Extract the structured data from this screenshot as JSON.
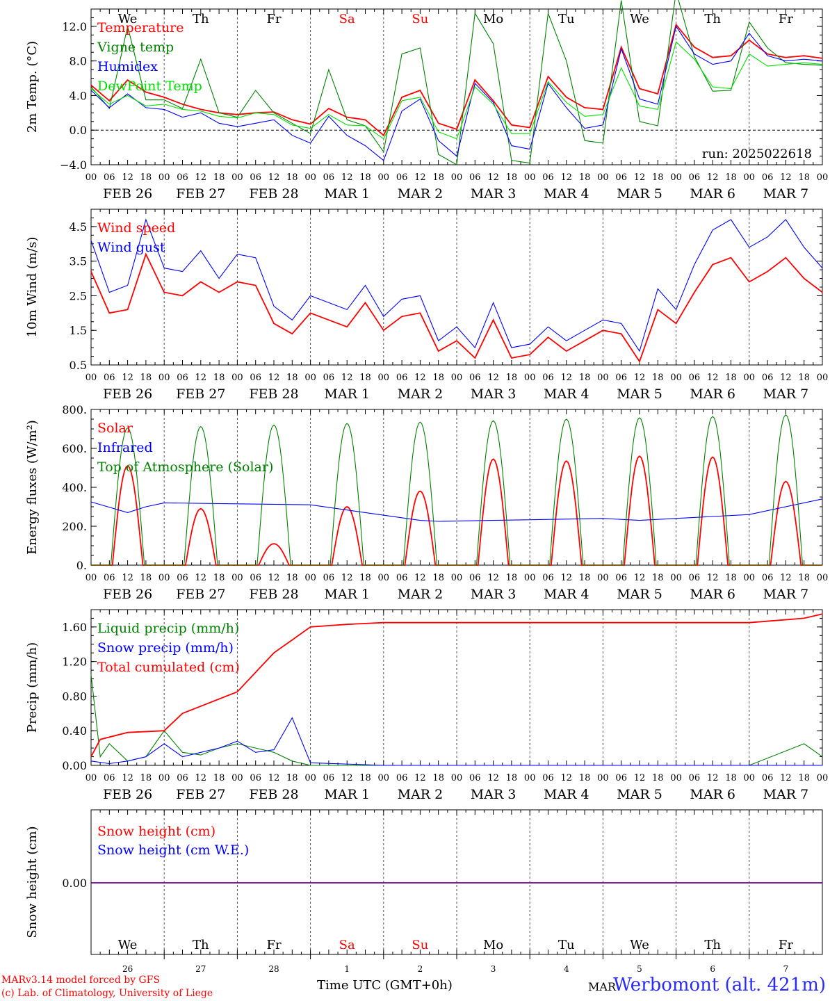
{
  "location": "Werbomont (alt. 421m)",
  "footer_model": "MARv3.14 model forced by GFS",
  "footer_credit": "(c) Lab. of Climatology, University of Liege",
  "xaxis_title": "Time UTC (GMT+0h)",
  "run_label": "run: 2025022618",
  "colors": {
    "red": "#ff0000",
    "green": "#008000",
    "blue": "#0000ff",
    "lightgreen": "#00e000",
    "weekend": "#ff0000",
    "text": "#000000"
  },
  "days": [
    {
      "dow": "We",
      "date": "FEB 26",
      "num": "26",
      "weekend": false
    },
    {
      "dow": "Th",
      "date": "FEB 27",
      "num": "27",
      "weekend": false
    },
    {
      "dow": "Fr",
      "date": "FEB 28",
      "num": "28",
      "weekend": false
    },
    {
      "dow": "Sa",
      "date": "MAR  1",
      "num": "1",
      "weekend": true
    },
    {
      "dow": "Su",
      "date": "MAR  2",
      "num": "2",
      "weekend": true
    },
    {
      "dow": "Mo",
      "date": "MAR  3",
      "num": "3",
      "weekend": false
    },
    {
      "dow": "Tu",
      "date": "MAR  4",
      "num": "4",
      "weekend": false
    },
    {
      "dow": "We",
      "date": "MAR  5",
      "num": "5",
      "weekend": false
    },
    {
      "dow": "Th",
      "date": "MAR  6",
      "num": "6",
      "weekend": false
    },
    {
      "dow": "Fr",
      "date": "MAR  7",
      "num": "7",
      "weekend": false
    }
  ],
  "hour_ticks": [
    "00",
    "06",
    "12",
    "18"
  ],
  "bottom_month_label": "MAR",
  "chart_data": [
    {
      "type": "line",
      "ylabel": "2m Temp. (°C)",
      "ylim": [
        -4,
        14
      ],
      "yticks": [
        -4,
        0,
        4,
        8,
        12
      ],
      "ytick_labels": [
        "−4.0",
        "0.0",
        "4.0",
        "8.0",
        "12.0"
      ],
      "zero_line": true,
      "x_hours": [
        0,
        6,
        12,
        18,
        24,
        30,
        36,
        42,
        48,
        54,
        60,
        66,
        72,
        78,
        84,
        90,
        96,
        102,
        108,
        114,
        120,
        126,
        132,
        138,
        144,
        150,
        156,
        162,
        168,
        174,
        180,
        186,
        192,
        198,
        204,
        210,
        216,
        222,
        228,
        234,
        240
      ],
      "series": [
        {
          "name": "Temperature",
          "color": "red",
          "values": [
            5.2,
            3.4,
            5.8,
            4.4,
            3.8,
            3.0,
            2.4,
            2.0,
            1.8,
            2.0,
            2.1,
            1.2,
            0.7,
            2.5,
            1.5,
            1.2,
            -0.6,
            3.8,
            4.6,
            0.8,
            0.1,
            5.8,
            3.4,
            0.6,
            0.3,
            6.2,
            3.8,
            2.6,
            2.4,
            9.6,
            4.8,
            4.2,
            12.2,
            9.6,
            8.4,
            8.6,
            10.4,
            8.8,
            8.4,
            8.6,
            8.3
          ]
        },
        {
          "name": "Vigne temp",
          "color": "green",
          "values": [
            5.0,
            2.5,
            12.0,
            3.5,
            3.5,
            2.5,
            8.2,
            2.0,
            1.5,
            4.6,
            2.0,
            0.8,
            -0.4,
            7.0,
            1.2,
            0.5,
            -2.5,
            8.8,
            9.5,
            -2.8,
            -4.0,
            13.5,
            10.0,
            -3.5,
            -3.8,
            13.5,
            8.0,
            -1.2,
            -1.5,
            15.0,
            1.0,
            0.5,
            16.0,
            8.5,
            4.5,
            4.6,
            12.5,
            9.5,
            7.8,
            7.6,
            7.5
          ]
        },
        {
          "name": "Humidex",
          "color": "blue",
          "values": [
            4.6,
            2.6,
            4.2,
            2.6,
            2.4,
            1.5,
            2.0,
            0.8,
            0.4,
            0.8,
            1.2,
            -0.6,
            -1.5,
            1.6,
            -0.6,
            -1.8,
            -3.5,
            2.2,
            3.6,
            -1.2,
            -3.0,
            5.4,
            3.2,
            -1.8,
            -2.2,
            5.4,
            2.6,
            0.2,
            0.6,
            9.4,
            3.6,
            3.0,
            12.0,
            8.8,
            7.6,
            8.0,
            11.2,
            8.6,
            8.0,
            8.2,
            8.0
          ]
        },
        {
          "name": "DewPoint Temp",
          "color": "lightgreen",
          "values": [
            4.8,
            3.0,
            4.0,
            2.8,
            3.0,
            2.4,
            2.2,
            1.6,
            1.4,
            2.0,
            1.8,
            0.6,
            0.2,
            1.8,
            0.6,
            0.5,
            -1.0,
            3.4,
            3.8,
            -0.2,
            -1.0,
            5.0,
            3.0,
            -0.4,
            -0.4,
            5.6,
            3.2,
            1.6,
            1.8,
            7.2,
            2.8,
            2.4,
            10.2,
            8.2,
            5.0,
            4.8,
            8.8,
            7.4,
            7.6,
            7.8,
            7.6
          ]
        }
      ],
      "legend": [
        {
          "label": "Temperature",
          "color": "red"
        },
        {
          "label": "Vigne temp",
          "color": "green"
        },
        {
          "label": "Humidex",
          "color": "blue"
        },
        {
          "label": "DewPoint Temp",
          "color": "lightgreen"
        }
      ]
    },
    {
      "type": "line",
      "ylabel": "10m Wind (m/s)",
      "ylim": [
        0.5,
        5.0
      ],
      "yticks": [
        0.5,
        1.5,
        2.5,
        3.5,
        4.5
      ],
      "ytick_labels": [
        "0.5",
        "1.5",
        "2.5",
        "3.5",
        "4.5"
      ],
      "zero_line": false,
      "x_hours": [
        0,
        6,
        12,
        18,
        24,
        30,
        36,
        42,
        48,
        54,
        60,
        66,
        72,
        78,
        84,
        90,
        96,
        102,
        108,
        114,
        120,
        126,
        132,
        138,
        144,
        150,
        156,
        162,
        168,
        174,
        180,
        186,
        192,
        198,
        204,
        210,
        216,
        222,
        228,
        234,
        240
      ],
      "series": [
        {
          "name": "Wind speed",
          "color": "red",
          "values": [
            3.2,
            2.0,
            2.1,
            3.7,
            2.6,
            2.5,
            2.9,
            2.6,
            2.9,
            2.8,
            1.7,
            1.4,
            2.0,
            1.8,
            1.6,
            2.3,
            1.5,
            1.9,
            2.0,
            0.9,
            1.2,
            0.7,
            1.8,
            0.7,
            0.8,
            1.3,
            0.9,
            1.2,
            1.5,
            1.4,
            0.6,
            2.1,
            1.7,
            2.6,
            3.4,
            3.6,
            2.9,
            3.2,
            3.6,
            3.0,
            2.6
          ]
        },
        {
          "name": "Wind gust",
          "color": "blue",
          "values": [
            4.1,
            2.6,
            2.8,
            4.7,
            3.3,
            3.2,
            3.8,
            3.0,
            3.7,
            3.6,
            2.2,
            1.8,
            2.5,
            2.3,
            2.1,
            2.8,
            1.9,
            2.4,
            2.5,
            1.2,
            1.6,
            1.0,
            2.3,
            1.0,
            1.1,
            1.6,
            1.2,
            1.5,
            1.8,
            1.7,
            0.9,
            2.7,
            2.1,
            3.4,
            4.4,
            4.7,
            3.9,
            4.2,
            4.7,
            3.9,
            3.3
          ]
        }
      ],
      "legend": [
        {
          "label": "Wind speed",
          "color": "red"
        },
        {
          "label": "Wind gust",
          "color": "blue"
        }
      ]
    },
    {
      "type": "line",
      "ylabel": "Energy fluxes (W/m²)",
      "ylim": [
        0,
        800
      ],
      "yticks": [
        0,
        200,
        400,
        600,
        800
      ],
      "ytick_labels": [
        "0.",
        "200.",
        "400.",
        "600.",
        "800."
      ],
      "zero_line": false,
      "series": [
        {
          "name": "Solar",
          "color": "red",
          "kind": "daily_peaks",
          "peak_hour": 12,
          "half_width": 5,
          "peaks": [
            510,
            290,
            110,
            300,
            380,
            545,
            535,
            560,
            555,
            430
          ]
        },
        {
          "name": "Infrared",
          "color": "blue",
          "x_hours": [
            0,
            12,
            18,
            24,
            48,
            72,
            108,
            114,
            132,
            168,
            180,
            216,
            240
          ],
          "values": [
            325,
            270,
            300,
            320,
            315,
            310,
            230,
            225,
            230,
            240,
            230,
            260,
            340
          ]
        },
        {
          "name": "Top of Atmosphere (Solar)",
          "color": "green",
          "kind": "daily_peaks",
          "peak_hour": 12,
          "half_width": 5.5,
          "peaks": [
            705,
            712,
            720,
            728,
            735,
            742,
            750,
            757,
            764,
            772
          ]
        }
      ],
      "legend": [
        {
          "label": "Solar",
          "color": "red"
        },
        {
          "label": "Infrared",
          "color": "blue"
        },
        {
          "label": "Top of Atmosphere (Solar)",
          "color": "green"
        }
      ]
    },
    {
      "type": "line",
      "ylabel": "Precip (mm/h)",
      "ylim": [
        0,
        1.8
      ],
      "yticks": [
        0,
        0.4,
        0.8,
        1.2,
        1.6
      ],
      "ytick_labels": [
        "0.00",
        "0.40",
        "0.80",
        "1.20",
        "1.60"
      ],
      "zero_line": false,
      "series": [
        {
          "name": "Liquid precip (mm/h)",
          "color": "green",
          "x_hours": [
            0,
            3,
            6,
            12,
            18,
            24,
            30,
            36,
            42,
            48,
            54,
            60,
            66,
            72,
            96,
            216,
            234,
            240
          ],
          "values": [
            1.05,
            0.1,
            0.25,
            0.05,
            0.1,
            0.4,
            0.15,
            0.12,
            0.2,
            0.25,
            0.2,
            0.15,
            0.05,
            0.0,
            0.0,
            0.0,
            0.25,
            0.1
          ]
        },
        {
          "name": "Snow precip (mm/h)",
          "color": "blue",
          "x_hours": [
            0,
            6,
            12,
            18,
            24,
            30,
            36,
            42,
            48,
            54,
            60,
            66,
            72,
            96,
            240
          ],
          "values": [
            0.05,
            0.02,
            0.05,
            0.1,
            0.25,
            0.1,
            0.15,
            0.2,
            0.28,
            0.15,
            0.18,
            0.55,
            0.03,
            0.0,
            0.0
          ]
        },
        {
          "name": "Total cumulated (cm)",
          "color": "red",
          "x_hours": [
            0,
            3,
            12,
            24,
            30,
            48,
            60,
            66,
            72,
            84,
            96,
            120,
            216,
            234,
            240
          ],
          "values": [
            0.1,
            0.3,
            0.38,
            0.4,
            0.6,
            0.85,
            1.3,
            1.45,
            1.6,
            1.63,
            1.65,
            1.65,
            1.65,
            1.7,
            1.75
          ]
        }
      ],
      "legend": [
        {
          "label": "Liquid precip (mm/h)",
          "color": "green"
        },
        {
          "label": "Snow precip (mm/h)",
          "color": "blue"
        },
        {
          "label": "Total cumulated (cm)",
          "color": "red"
        }
      ]
    },
    {
      "type": "line",
      "ylabel": "Snow height (cm)",
      "yticks": [
        0
      ],
      "ytick_labels": [
        "0.00"
      ],
      "series": [
        {
          "name": "Snow height (cm)",
          "color": "red",
          "x_hours": [
            0,
            240
          ],
          "values": [
            0,
            0
          ]
        },
        {
          "name": "Snow height (cm W.E.)",
          "color": "blue",
          "x_hours": [
            0,
            240
          ],
          "values": [
            0,
            0
          ]
        }
      ],
      "legend": [
        {
          "label": "Snow height (cm)",
          "color": "red"
        },
        {
          "label": "Snow height (cm W.E.)",
          "color": "blue"
        }
      ]
    }
  ]
}
